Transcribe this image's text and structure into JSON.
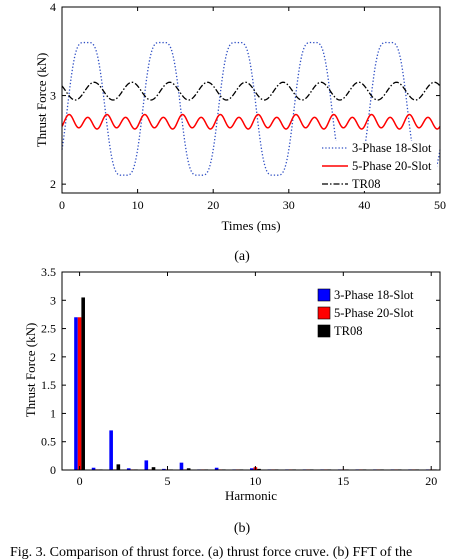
{
  "chart_data": [
    {
      "type": "line",
      "xlabel": "Times (ms)",
      "ylabel": "Thrust Force (kN)",
      "xlim": [
        0,
        50
      ],
      "ylim": [
        1.9,
        4
      ],
      "xticks": [
        0,
        10,
        20,
        30,
        40,
        50
      ],
      "yticks": [
        2,
        3,
        4
      ],
      "grid": false,
      "legend": "bottom-right",
      "caption": "(a)",
      "series": [
        {
          "name": "3-Phase 18-Slot",
          "color": "#2f4fc4",
          "style": "dotted",
          "mean": 2.85,
          "amplitude": 0.85,
          "period_ms": 10,
          "phase_ms": 0.7
        },
        {
          "name": "5-Phase 20-Slot",
          "color": "#ff0000",
          "style": "solid",
          "mean": 2.7,
          "amplitude": 0.07,
          "period_ms": 2.5,
          "phase_ms": 0.3
        },
        {
          "name": "TR08",
          "color": "#000000",
          "style": "dashdot",
          "mean": 3.05,
          "amplitude": 0.1,
          "period_ms": 5,
          "phase_ms": 3.0
        }
      ]
    },
    {
      "type": "bar",
      "xlabel": "Harmonic",
      "ylabel": "Thrust Force (kN)",
      "xlim": [
        -1,
        20.5
      ],
      "ylim": [
        0,
        3.5
      ],
      "xticks": [
        0,
        5,
        10,
        15,
        20
      ],
      "yticks": [
        0,
        0.5,
        1,
        1.5,
        2,
        2.5,
        3,
        3.5
      ],
      "grid": false,
      "legend": "top-right",
      "caption": "(b)",
      "harmonics": [
        0,
        1,
        2,
        3,
        4,
        5,
        6,
        7,
        8,
        9,
        10,
        11,
        12,
        13,
        14,
        15,
        16,
        17,
        18,
        19,
        20
      ],
      "series": [
        {
          "name": "3-Phase 18-Slot",
          "color": "#0000ff",
          "values": [
            2.7,
            0.04,
            0.7,
            0.03,
            0.17,
            0.02,
            0.13,
            0.01,
            0.04,
            0.01,
            0.03,
            0.01,
            0.01,
            0.005,
            0.01,
            0.005,
            0.005,
            0.005,
            0.005,
            0.005,
            0.005
          ]
        },
        {
          "name": "5-Phase 20-Slot",
          "color": "#ff0000",
          "values": [
            2.7,
            0.01,
            0.01,
            0.01,
            0.01,
            0.01,
            0.01,
            0.01,
            0.01,
            0.01,
            0.05,
            0.005,
            0.005,
            0.005,
            0.005,
            0.005,
            0.005,
            0.005,
            0.005,
            0.005,
            0.005
          ]
        },
        {
          "name": "TR08",
          "color": "#000000",
          "values": [
            3.05,
            0.01,
            0.1,
            0.01,
            0.05,
            0.01,
            0.03,
            0.005,
            0.01,
            0.005,
            0.02,
            0.005,
            0.005,
            0.005,
            0.005,
            0.005,
            0.005,
            0.005,
            0.005,
            0.005,
            0.005
          ]
        }
      ]
    }
  ],
  "footer_caption": "Fig. 3.   Comparison of thrust force. (a) thrust force cruve. (b) FFT of the"
}
